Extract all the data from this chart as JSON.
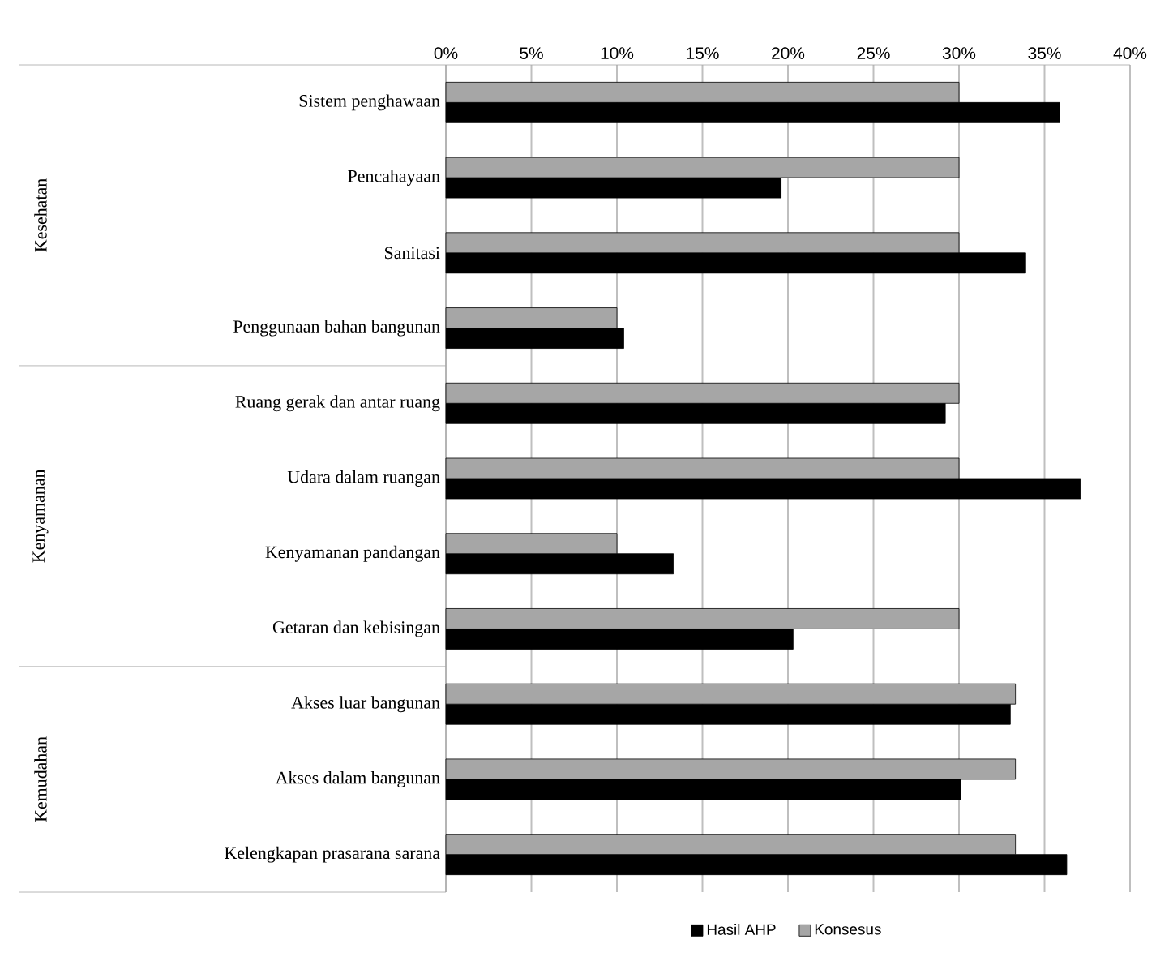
{
  "chart_data": {
    "type": "bar",
    "orientation": "horizontal",
    "categories": [
      "Sistem penghawaan",
      "Pencahayaan",
      "Sanitasi",
      "Penggunaan bahan bangunan",
      "Ruang gerak dan antar ruang",
      "Udara dalam ruangan",
      "Kenyamanan pandangan",
      "Getaran dan kebisingan",
      "Akses luar bangunan",
      "Akses dalam bangunan",
      "Kelengkapan prasarana sarana"
    ],
    "series": [
      {
        "name": "Hasil AHP",
        "color": "#000000",
        "values": [
          35.9,
          19.6,
          33.9,
          10.4,
          29.2,
          37.1,
          13.3,
          20.3,
          33.0,
          30.1,
          36.3
        ]
      },
      {
        "name": "Konsesus",
        "color": "#a6a6a6",
        "values": [
          30,
          30,
          30,
          10,
          30,
          30,
          10,
          30,
          33.3,
          33.3,
          33.3
        ]
      }
    ],
    "xlim": [
      0,
      40
    ],
    "xticks": [
      {
        "value": 0,
        "label": "0%"
      },
      {
        "value": 5,
        "label": "5%"
      },
      {
        "value": 10,
        "label": "10%"
      },
      {
        "value": 15,
        "label": "15%"
      },
      {
        "value": 20,
        "label": "20%"
      },
      {
        "value": 25,
        "label": "25%"
      },
      {
        "value": 30,
        "label": "30%"
      },
      {
        "value": 35,
        "label": "35%"
      },
      {
        "value": 40,
        "label": "40%"
      }
    ],
    "annotations": [
      "Kesehatan",
      "Kenyamanan",
      "Kemudahan"
    ],
    "grid": "x",
    "legend": "bottom"
  }
}
